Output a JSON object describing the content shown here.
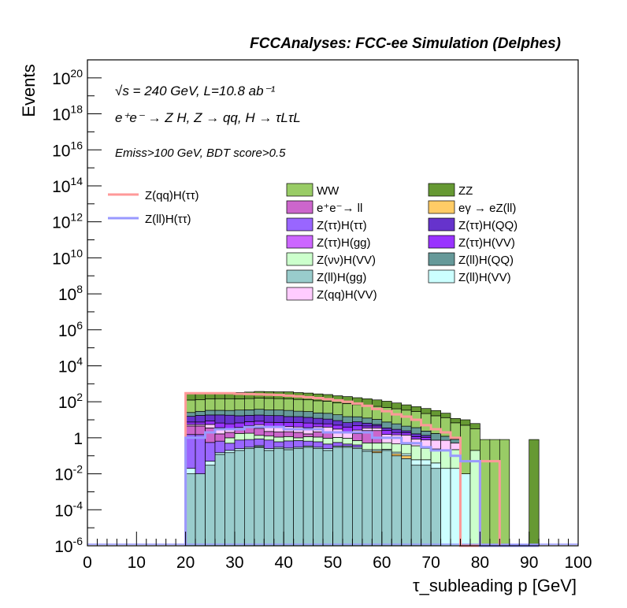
{
  "header": {
    "title": "FCCAnalyses: FCC-ee Simulation (Delphes)"
  },
  "annotations": {
    "line1": "√s = 240 GeV, L=10.8 ab⁻¹",
    "line2": "e⁺e⁻ → Z H, Z → qq, H → τLτL",
    "line3": "Emiss>100 GeV, BDT score>0.5"
  },
  "colors": {
    "WW": "#99cc66",
    "ZZ": "#669933",
    "ee_ll": "#cc66cc",
    "egamma": "#ffcc66",
    "tt_tt": "#9966ff",
    "tt_QQ": "#6633cc",
    "tt_gg": "#cc66ff",
    "tt_VV": "#9933ff",
    "vv_VV": "#ccffcc",
    "ll_QQ": "#669999",
    "ll_gg": "#99cccc",
    "ll_VV": "#ccffff",
    "qq_VV": "#ffccff",
    "sig_qq": "#ff9999",
    "sig_ll": "#9999ff"
  },
  "chart_data": {
    "type": "bar",
    "title": "FCCAnalyses: FCC-ee Simulation (Delphes)",
    "xlabel": "τ_subleading p [GeV]",
    "ylabel": "Events",
    "xlim": [
      0,
      100
    ],
    "ylim": [
      1e-06,
      1e+21
    ],
    "y_scale": "log",
    "x_ticks": [
      "0",
      "10",
      "20",
      "30",
      "40",
      "50",
      "60",
      "70",
      "80",
      "90",
      "100"
    ],
    "y_ticks": [
      "10^-6",
      "10^-4",
      "10^-2",
      "1",
      "10^2",
      "10^4",
      "10^6",
      "10^8",
      "10^10",
      "10^12",
      "10^14",
      "10^16",
      "10^18",
      "10^20"
    ],
    "bin_edges": [
      20,
      22,
      24,
      26,
      28,
      30,
      32,
      34,
      36,
      38,
      40,
      42,
      44,
      46,
      48,
      50,
      52,
      54,
      56,
      58,
      60,
      62,
      64,
      66,
      68,
      70,
      72,
      74,
      76,
      78,
      80,
      82,
      84,
      86,
      88,
      90,
      92
    ],
    "stack_totals": [
      300,
      300,
      320,
      340,
      340,
      340,
      360,
      380,
      370,
      360,
      360,
      330,
      310,
      280,
      260,
      220,
      200,
      170,
      150,
      130,
      110,
      90,
      70,
      55,
      45,
      35,
      25,
      12,
      10,
      6,
      0.8,
      0.8,
      0.8,
      0,
      0,
      0.8,
      0
    ],
    "stack_layers": [
      {
        "name": "Z(ll)H(gg)",
        "values": [
          0.01,
          0.01,
          0.03,
          0.12,
          0.15,
          0.2,
          0.25,
          0.3,
          0.2,
          0.25,
          0.22,
          0.25,
          0.3,
          0.25,
          0.2,
          0.3,
          0.3,
          0.25,
          0.18,
          0.15,
          0.2,
          0.1,
          0.07,
          0.03,
          0.03,
          0.02,
          0,
          0,
          0,
          0,
          0,
          0,
          0,
          0,
          0,
          0,
          0
        ]
      },
      {
        "name": "eγ → eZ(ll)",
        "values": [
          0,
          0,
          0,
          0,
          0,
          0,
          0,
          0.02,
          0,
          0,
          0,
          0,
          0,
          0,
          0,
          0,
          0,
          0,
          0,
          0.03,
          0,
          0.03,
          0.03,
          0,
          0,
          0,
          0,
          0,
          0,
          0,
          0,
          0,
          0,
          0,
          0,
          0,
          0
        ]
      },
      {
        "name": "Z(ll)H(VV)",
        "values": [
          0.01,
          0,
          0.02,
          0.03,
          0.05,
          0.05,
          0.05,
          0.05,
          0.05,
          0.05,
          0.05,
          0.05,
          0.05,
          0.05,
          0.05,
          0.05,
          0.05,
          0.05,
          0.04,
          0.04,
          0.03,
          0.03,
          0.03,
          0.03,
          0.03,
          0.02,
          0.02,
          0.02,
          0.01,
          0,
          0,
          0,
          0,
          0,
          0,
          0,
          0
        ]
      },
      {
        "name": "Z(ττ)H(ττ)",
        "values": [
          1.5,
          1.5,
          0.5,
          0.5,
          0.3,
          0.5,
          0.5,
          0.5,
          0.5,
          0.3,
          0.4,
          0.4,
          0.3,
          0.3,
          0.2,
          0.2,
          0.1,
          0.1,
          0,
          0,
          0,
          0,
          0,
          0,
          0,
          0,
          0,
          0,
          0,
          0,
          0,
          0,
          0,
          0,
          0,
          0,
          0
        ]
      },
      {
        "name": "Z(νν)H(VV)",
        "values": [
          0,
          0,
          0,
          0,
          0.5,
          1,
          1,
          0.5,
          0.5,
          0.5,
          0.5,
          0.3,
          0.5,
          0.5,
          0.5,
          0.5,
          0.5,
          0.3,
          0.3,
          0.3,
          0.3,
          0.3,
          0.3,
          0.3,
          0.2,
          0.2,
          0.2,
          0.2,
          0,
          0.2,
          0,
          0,
          0,
          0,
          0,
          0,
          0
        ]
      },
      {
        "name": "e⁺e⁻→ ll",
        "values": [
          3,
          3,
          3,
          1,
          1,
          1,
          2,
          2,
          1,
          1,
          1,
          1,
          0.5,
          1,
          1,
          0,
          0,
          1,
          2,
          2,
          0,
          0,
          0,
          0,
          0,
          0,
          0,
          0,
          0,
          0,
          0,
          0,
          0,
          0,
          0,
          0,
          0
        ]
      },
      {
        "name": "Z(qq)H(VV)",
        "values": [
          1,
          1,
          2,
          2,
          1,
          1,
          1,
          2,
          2,
          2,
          2,
          2,
          2,
          2,
          2,
          2,
          1,
          1,
          1,
          1,
          1,
          1,
          1,
          0.5,
          0.5,
          0.5,
          0.5,
          0.3,
          0,
          0,
          0,
          0,
          0,
          0,
          0,
          0,
          0
        ]
      },
      {
        "name": "Z(ττ)H(VV)",
        "values": [
          2,
          2,
          3,
          3,
          3,
          3,
          3,
          3,
          3,
          3,
          3,
          3,
          3,
          2,
          2,
          2,
          2,
          2,
          1,
          1,
          1,
          0.5,
          0.5,
          0.3,
          0.3,
          0,
          0,
          0,
          0,
          0,
          0,
          0,
          0,
          0,
          0,
          0,
          0
        ]
      },
      {
        "name": "Z(ττ)H(QQ)",
        "values": [
          8,
          10,
          10,
          12,
          12,
          10,
          10,
          10,
          10,
          10,
          8,
          8,
          7,
          6,
          5,
          4,
          3,
          3,
          2,
          1,
          1,
          1,
          0.5,
          0.5,
          0.3,
          0,
          0,
          0,
          0,
          0,
          0,
          0,
          0,
          0,
          0,
          0,
          0
        ]
      },
      {
        "name": "Z(ll)H(QQ)",
        "values": [
          10,
          12,
          15,
          15,
          15,
          18,
          18,
          20,
          18,
          18,
          18,
          15,
          15,
          12,
          12,
          10,
          8,
          7,
          6,
          5,
          4,
          3,
          2,
          2,
          1,
          1,
          0.5,
          0.3,
          0,
          0,
          0,
          0,
          0,
          0,
          0,
          0,
          0
        ]
      },
      {
        "name": "WW",
        "values": [
          100,
          100,
          110,
          115,
          115,
          110,
          115,
          120,
          120,
          115,
          115,
          105,
          100,
          90,
          85,
          70,
          65,
          55,
          50,
          45,
          40,
          35,
          30,
          25,
          20,
          15,
          12,
          6,
          5,
          3,
          0.8,
          0.8,
          0.8,
          0,
          0,
          0,
          0
        ]
      },
      {
        "name": "ZZ",
        "values": [
          175,
          171,
          176,
          178,
          178,
          184,
          196,
          216,
          213,
          208,
          210,
          190,
          177,
          160,
          145,
          127,
          115,
          99,
          85,
          72,
          60,
          45,
          33,
          25,
          20,
          16,
          10,
          5,
          5,
          3,
          0,
          0,
          0,
          0,
          0,
          0.8,
          0
        ]
      }
    ],
    "series": [
      {
        "name": "Z(qq)H(ττ)",
        "values": [
          300,
          300,
          300,
          300,
          300,
          280,
          270,
          260,
          250,
          240,
          220,
          200,
          180,
          160,
          140,
          120,
          100,
          80,
          60,
          40,
          30,
          20,
          15,
          10,
          5,
          3,
          2,
          1,
          0,
          0,
          0.05,
          0.05,
          0,
          0,
          0,
          0,
          0
        ]
      },
      {
        "name": "Z(ll)H(ττ)",
        "values": [
          1,
          1,
          2,
          3,
          3,
          3,
          4,
          4,
          4,
          4,
          3,
          3,
          3,
          3,
          2,
          2,
          2,
          2,
          2,
          1,
          1,
          1,
          0.5,
          0.5,
          0.3,
          0.2,
          0.2,
          0.1,
          0.05,
          0.05,
          0,
          0,
          0,
          0,
          0,
          0,
          0
        ]
      }
    ],
    "legend": {
      "placement": "top",
      "signal": [
        "Z(qq)H(ττ)",
        "Z(ll)H(ττ)"
      ],
      "background_col1": [
        "WW",
        "e⁺e⁻→ ll",
        "Z(ττ)H(ττ)",
        "Z(ττ)H(gg)",
        "Z(νν)H(VV)",
        "Z(ll)H(gg)",
        "Z(qq)H(VV)"
      ],
      "background_col2": [
        "ZZ",
        "eγ → eZ(ll)",
        "Z(ττ)H(QQ)",
        "Z(ττ)H(VV)",
        "Z(ll)H(QQ)",
        "Z(ll)H(VV)"
      ]
    },
    "grid": false
  }
}
